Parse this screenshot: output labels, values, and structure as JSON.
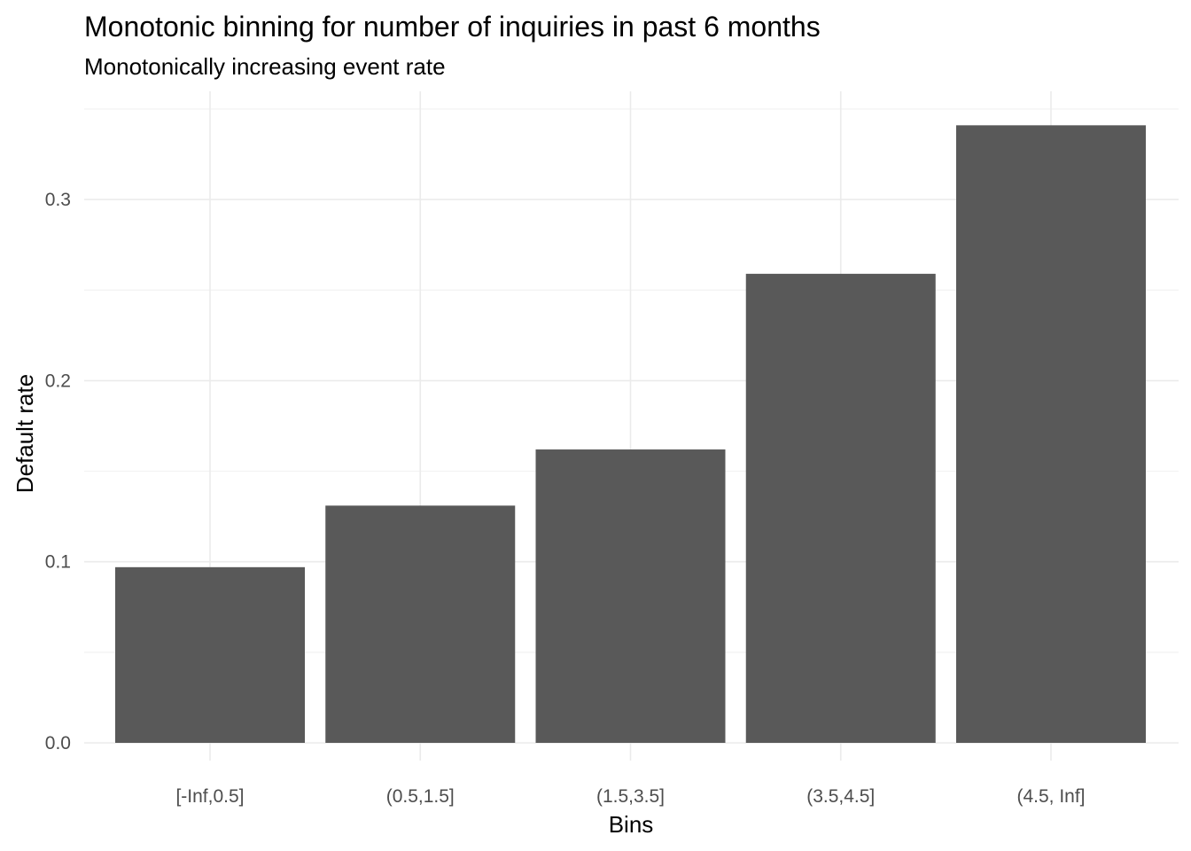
{
  "chart_data": {
    "type": "bar",
    "title": "Monotonic binning for number of inquiries in past 6 months",
    "subtitle": "Monotonically increasing event rate",
    "xlabel": "Bins",
    "ylabel": "Default rate",
    "categories": [
      "[-Inf,0.5]",
      "(0.5,1.5]",
      "(1.5,3.5]",
      "(3.5,4.5]",
      "(4.5, Inf]"
    ],
    "values": [
      0.097,
      0.131,
      0.162,
      0.259,
      0.341
    ],
    "ylim": [
      0,
      0.35
    ],
    "yticks": [
      0.0,
      0.1,
      0.2,
      0.3
    ],
    "ytick_labels": [
      "0.0",
      "0.1",
      "0.2",
      "0.3"
    ],
    "grid": true,
    "legend": "none",
    "bar_color": "#595959",
    "grid_color": "#ebebeb"
  }
}
